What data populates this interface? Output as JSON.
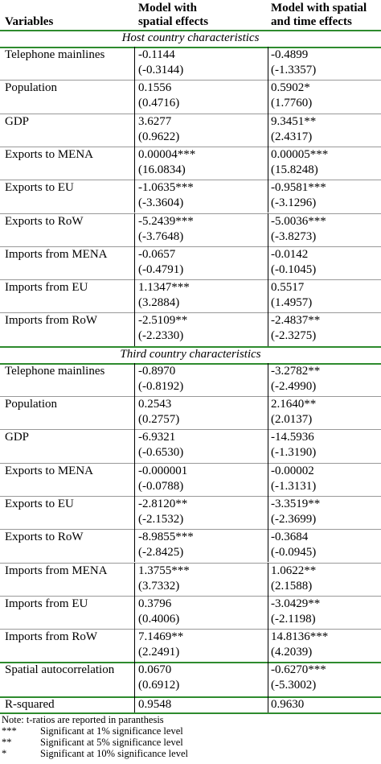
{
  "header": {
    "variables": "Variables",
    "model1": [
      "Model with",
      "spatial effects"
    ],
    "model2": [
      "Model with spatial",
      "and time effects"
    ]
  },
  "sections": [
    {
      "title": "Host country characteristics",
      "rows": [
        {
          "variable": "Telephone mainlines",
          "model1": [
            "-0.1144",
            "(-0.3144)"
          ],
          "model2": [
            "-0.4899",
            "(-1.3357)"
          ]
        },
        {
          "variable": "Population",
          "model1": [
            "0.1556",
            "(0.4716)"
          ],
          "model2": [
            "0.5902*",
            "(1.7760)"
          ]
        },
        {
          "variable": "GDP",
          "model1": [
            "3.6277",
            "(0.9622)"
          ],
          "model2": [
            "9.3451**",
            "(2.4317)"
          ]
        },
        {
          "variable": "Exports to MENA",
          "model1": [
            "0.00004***",
            "(16.0834)"
          ],
          "model2": [
            "0.00005***",
            "(15.8248)"
          ]
        },
        {
          "variable": "Exports to EU",
          "model1": [
            "-1.0635***",
            "(-3.3604)"
          ],
          "model2": [
            "-0.9581***",
            "(-3.1296)"
          ]
        },
        {
          "variable": "Exports to RoW",
          "model1": [
            "-5.2439***",
            "(-3.7648)"
          ],
          "model2": [
            "-5.0036***",
            "(-3.8273)"
          ]
        },
        {
          "variable": "Imports from MENA",
          "model1": [
            "-0.0657",
            "(-0.4791)"
          ],
          "model2": [
            "-0.0142",
            "(-0.1045)"
          ]
        },
        {
          "variable": "Imports from EU",
          "model1": [
            "1.1347***",
            "(3.2884)"
          ],
          "model2": [
            "0.5517",
            "(1.4957)"
          ]
        },
        {
          "variable": "Imports from RoW",
          "model1": [
            "-2.5109**",
            "(-2.2330)"
          ],
          "model2": [
            "-2.4837**",
            "(-2.3275)"
          ]
        }
      ]
    },
    {
      "title": "Third country characteristics",
      "rows": [
        {
          "variable": "Telephone mainlines",
          "model1": [
            "-0.8970",
            "(-0.8192)"
          ],
          "model2": [
            "-3.2782**",
            "(-2.4990)"
          ]
        },
        {
          "variable": "Population",
          "model1": [
            "0.2543",
            "(0.2757)"
          ],
          "model2": [
            "2.1640**",
            "(2.0137)"
          ]
        },
        {
          "variable": "GDP",
          "model1": [
            "-6.9321",
            "(-0.6530)"
          ],
          "model2": [
            "-14.5936",
            "(-1.3190)"
          ]
        },
        {
          "variable": "Exports to MENA",
          "model1": [
            "-0.000001",
            "(-0.0788)"
          ],
          "model2": [
            "-0.00002",
            "(-1.3131)"
          ]
        },
        {
          "variable": "Exports to EU",
          "model1": [
            "-2.8120**",
            "(-2.1532)"
          ],
          "model2": [
            "-3.3519**",
            "(-2.3699)"
          ]
        },
        {
          "variable": "Exports to RoW",
          "model1": [
            "-8.9855***",
            "(-2.8425)"
          ],
          "model2": [
            "-0.3684",
            "(-0.0945)"
          ]
        },
        {
          "variable": "Imports from MENA",
          "model1": [
            "1.3755***",
            "(3.7332)"
          ],
          "model2": [
            "1.0622**",
            "(2.1588)"
          ]
        },
        {
          "variable": "Imports from EU",
          "model1": [
            "0.3796",
            "(0.4006)"
          ],
          "model2": [
            "-3.0429**",
            "(-2.1198)"
          ]
        },
        {
          "variable": "Imports from RoW",
          "model1": [
            "7.1469**",
            "(2.2491)"
          ],
          "model2": [
            "14.8136***",
            "(4.2039)"
          ]
        }
      ]
    }
  ],
  "extra_rows": [
    {
      "variable": "Spatial autocorrelation",
      "model1": [
        "0.0670",
        "(0.6912)"
      ],
      "model2": [
        "-0.6270***",
        "(-5.3002)"
      ]
    },
    {
      "variable": "R-squared",
      "model1": [
        "0.9548"
      ],
      "model2": [
        "0.9630"
      ]
    }
  ],
  "notes": {
    "text": "Note: t-ratios are reported in paranthesis",
    "items": [
      {
        "mark": "***",
        "text": "Significant at 1% significance level"
      },
      {
        "mark": "**",
        "text": "Significant at 5% significance level"
      },
      {
        "mark": "*",
        "text": "Significant at 10% significance level"
      }
    ]
  }
}
